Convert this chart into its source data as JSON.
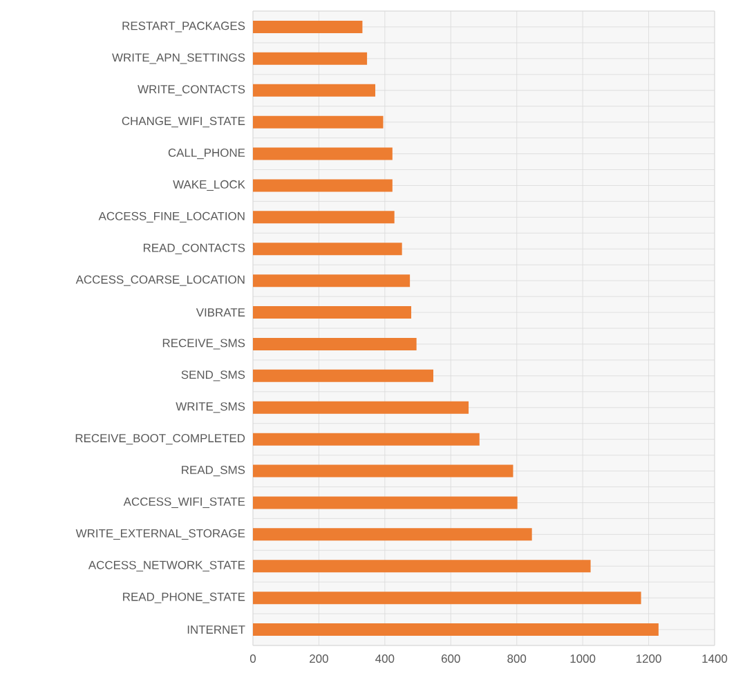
{
  "chart_data": {
    "type": "bar",
    "orientation": "horizontal",
    "categories": [
      "RESTART_PACKAGES",
      "WRITE_APN_SETTINGS",
      "WRITE_CONTACTS",
      "CHANGE_WIFI_STATE",
      "CALL_PHONE",
      "WAKE_LOCK",
      "ACCESS_FINE_LOCATION",
      "READ_CONTACTS",
      "ACCESS_COARSE_LOCATION",
      "VIBRATE",
      "RECEIVE_SMS",
      "SEND_SMS",
      "WRITE_SMS",
      "RECEIVE_BOOT_COMPLETED",
      "READ_SMS",
      "ACCESS_WIFI_STATE",
      "WRITE_EXTERNAL_STORAGE",
      "ACCESS_NETWORK_STATE",
      "READ_PHONE_STATE",
      "INTERNET"
    ],
    "values": [
      332,
      346,
      371,
      395,
      423,
      423,
      429,
      452,
      476,
      480,
      496,
      547,
      654,
      687,
      789,
      802,
      846,
      1024,
      1177,
      1230
    ],
    "color": "#ed7d31",
    "xlim": [
      0,
      1400
    ],
    "xticks": [
      0,
      200,
      400,
      600,
      800,
      1000,
      1200,
      1400
    ],
    "grid": true
  }
}
